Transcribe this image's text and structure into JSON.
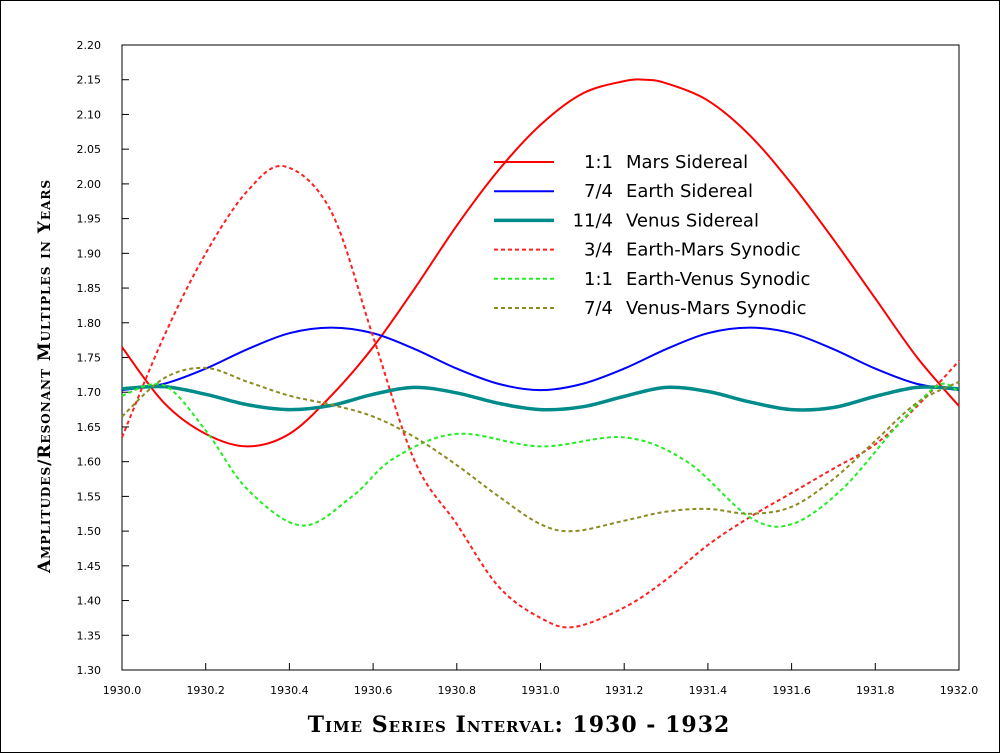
{
  "chart_data": {
    "type": "line",
    "title": "",
    "xlabel": "Time Series Interval:  1930 - 1932",
    "ylabel": "Amplitudes/Resonant Multiples in Years",
    "xlim": [
      1930.0,
      1932.0
    ],
    "ylim": [
      1.3,
      2.2
    ],
    "xticks": [
      "1930.0",
      "1930.2",
      "1930.4",
      "1930.6",
      "1930.8",
      "1931.0",
      "1931.2",
      "1931.4",
      "1931.6",
      "1931.8",
      "1932.0"
    ],
    "yticks": [
      "1.30",
      "1.35",
      "1.40",
      "1.45",
      "1.50",
      "1.55",
      "1.60",
      "1.65",
      "1.70",
      "1.75",
      "1.80",
      "1.85",
      "1.90",
      "1.95",
      "2.00",
      "2.05",
      "2.10",
      "2.15",
      "2.20"
    ],
    "grid": false,
    "legend_position": "top-right",
    "series": [
      {
        "ratio": "1:1",
        "name": "Mars Sidereal",
        "color": "#ff0000",
        "dash": false,
        "width": 2,
        "x": [
          1930.0,
          1930.1,
          1930.2,
          1930.3,
          1930.4,
          1930.5,
          1930.6,
          1930.7,
          1930.8,
          1930.9,
          1931.0,
          1931.1,
          1931.2,
          1931.25,
          1931.3,
          1931.4,
          1931.5,
          1931.6,
          1931.7,
          1931.8,
          1931.9,
          1932.0
        ],
        "y": [
          1.765,
          1.685,
          1.64,
          1.622,
          1.64,
          1.695,
          1.765,
          1.85,
          1.94,
          2.02,
          2.085,
          2.13,
          2.148,
          2.15,
          2.145,
          2.12,
          2.07,
          2.0,
          1.92,
          1.835,
          1.75,
          1.68
        ]
      },
      {
        "ratio": "7/4",
        "name": "Earth Sidereal",
        "color": "#0000ff",
        "dash": false,
        "width": 2,
        "x": [
          1930.0,
          1930.1,
          1930.2,
          1930.3,
          1930.4,
          1930.5,
          1930.6,
          1930.7,
          1930.8,
          1930.9,
          1931.0,
          1931.1,
          1931.2,
          1931.3,
          1931.4,
          1931.5,
          1931.6,
          1931.7,
          1931.8,
          1931.9,
          1932.0
        ],
        "y": [
          1.703,
          1.712,
          1.734,
          1.762,
          1.785,
          1.793,
          1.785,
          1.762,
          1.734,
          1.712,
          1.703,
          1.712,
          1.734,
          1.762,
          1.785,
          1.793,
          1.785,
          1.762,
          1.734,
          1.712,
          1.703
        ]
      },
      {
        "ratio": "11/4",
        "name": "Venus Sidereal",
        "color": "#008b8b",
        "dash": false,
        "width": 3.5,
        "x": [
          1930.0,
          1930.1,
          1930.2,
          1930.3,
          1930.4,
          1930.5,
          1930.6,
          1930.7,
          1930.8,
          1930.9,
          1931.0,
          1931.1,
          1931.2,
          1931.3,
          1931.4,
          1931.5,
          1931.6,
          1931.7,
          1931.8,
          1931.9,
          1932.0
        ],
        "y": [
          1.705,
          1.708,
          1.697,
          1.682,
          1.675,
          1.681,
          1.697,
          1.707,
          1.699,
          1.684,
          1.675,
          1.679,
          1.694,
          1.707,
          1.701,
          1.686,
          1.675,
          1.678,
          1.694,
          1.707,
          1.705
        ]
      },
      {
        "ratio": "3/4",
        "name": "Earth-Mars Synodic",
        "color": "#ff2020",
        "dash": true,
        "width": 2,
        "x": [
          1930.0,
          1930.1,
          1930.2,
          1930.3,
          1930.39,
          1930.5,
          1930.6,
          1930.7,
          1930.8,
          1930.9,
          1931.0,
          1931.08,
          1931.2,
          1931.3,
          1931.4,
          1931.5,
          1931.6,
          1931.7,
          1931.8,
          1931.9,
          1932.0
        ],
        "y": [
          1.635,
          1.78,
          1.9,
          1.99,
          2.025,
          1.96,
          1.78,
          1.6,
          1.51,
          1.42,
          1.375,
          1.362,
          1.39,
          1.43,
          1.48,
          1.52,
          1.555,
          1.59,
          1.625,
          1.68,
          1.745
        ]
      },
      {
        "ratio": "1:1",
        "name": "Earth-Venus Synodic",
        "color": "#22ee22",
        "dash": true,
        "width": 2,
        "x": [
          1930.0,
          1930.1,
          1930.2,
          1930.3,
          1930.43,
          1930.55,
          1930.65,
          1930.8,
          1931.0,
          1931.2,
          1931.35,
          1931.5,
          1931.6,
          1931.72,
          1931.85,
          1931.95,
          1932.0
        ],
        "y": [
          1.695,
          1.71,
          1.645,
          1.56,
          1.508,
          1.55,
          1.605,
          1.64,
          1.622,
          1.635,
          1.6,
          1.52,
          1.51,
          1.56,
          1.65,
          1.71,
          1.7
        ]
      },
      {
        "ratio": "7/4",
        "name": "Venus-Mars Synodic",
        "color": "#8b8b22",
        "dash": true,
        "width": 2,
        "x": [
          1930.0,
          1930.1,
          1930.2,
          1930.3,
          1930.4,
          1930.5,
          1930.6,
          1930.7,
          1930.8,
          1930.9,
          1931.0,
          1931.08,
          1931.2,
          1931.3,
          1931.4,
          1931.5,
          1931.6,
          1931.7,
          1931.8,
          1931.9,
          1932.0
        ],
        "y": [
          1.665,
          1.72,
          1.735,
          1.715,
          1.695,
          1.682,
          1.665,
          1.635,
          1.595,
          1.55,
          1.51,
          1.5,
          1.515,
          1.528,
          1.532,
          1.525,
          1.535,
          1.575,
          1.63,
          1.685,
          1.715
        ]
      }
    ]
  }
}
